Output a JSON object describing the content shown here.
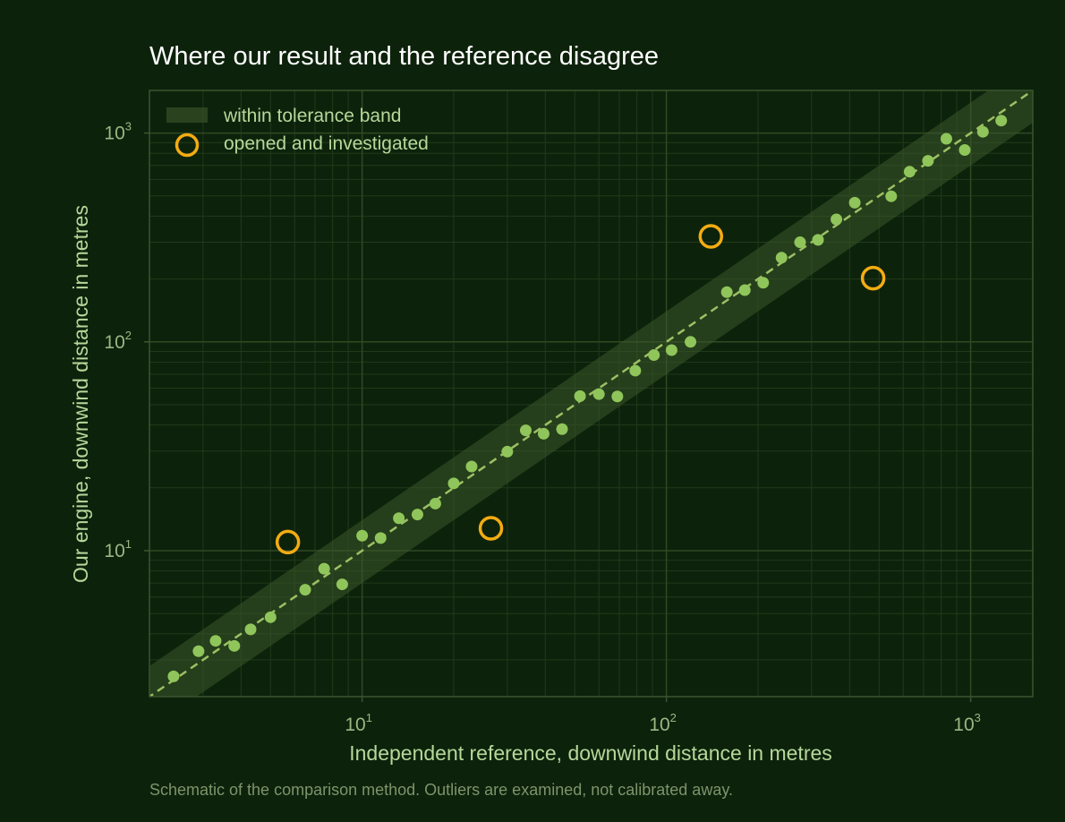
{
  "colors": {
    "background": "#0d220b",
    "grid_major": "#2f4a23",
    "grid_minor": "#213a1a",
    "frame": "#3b5530",
    "band_fill": "#3d5a2b",
    "points": "#8fc55a",
    "outliers": "#f3ac12",
    "identity_line": "#9cc064"
  },
  "chart_data": {
    "type": "scatter",
    "title": "Where our result and the reference disagree",
    "xlabel": "Independent reference, downwind distance in metres",
    "ylabel": "Our engine, downwind distance in metres",
    "footnote": "Schematic of the comparison method. Outliers are examined, not calibrated away.",
    "x_scale": "log",
    "y_scale": "log",
    "xlim": [
      2.0,
      1600
    ],
    "ylim": [
      2.0,
      1600
    ],
    "grid": true,
    "x_ticks": [
      {
        "base": "10",
        "exp": "1",
        "value": 10
      },
      {
        "base": "10",
        "exp": "2",
        "value": 100
      },
      {
        "base": "10",
        "exp": "3",
        "value": 1000
      }
    ],
    "y_ticks": [
      {
        "base": "10",
        "exp": "1",
        "value": 10
      },
      {
        "base": "10",
        "exp": "2",
        "value": 100
      },
      {
        "base": "10",
        "exp": "3",
        "value": 1000
      }
    ],
    "band": {
      "label": "within tolerance band",
      "factor_low": 0.7,
      "factor_high": 1.4
    },
    "identity_line": true,
    "legend": {
      "placement": "top-left"
    },
    "series": [
      {
        "points": [
          [
            2.4,
            2.5
          ],
          [
            2.9,
            3.3
          ],
          [
            3.3,
            3.7
          ],
          [
            3.8,
            3.5
          ],
          [
            4.3,
            4.2
          ],
          [
            5.0,
            4.8
          ],
          [
            6.5,
            6.5
          ],
          [
            7.5,
            8.2
          ],
          [
            8.6,
            6.9
          ],
          [
            10.0,
            11.8
          ],
          [
            11.5,
            11.5
          ],
          [
            13.2,
            14.3
          ],
          [
            15.2,
            14.9
          ],
          [
            17.4,
            16.8
          ],
          [
            20.0,
            21.0
          ],
          [
            22.9,
            25.3
          ],
          [
            30.0,
            29.8
          ],
          [
            34.5,
            37.7
          ],
          [
            39.5,
            36.3
          ],
          [
            45.4,
            38.2
          ],
          [
            52.0,
            55.0
          ],
          [
            60.0,
            56.2
          ],
          [
            69.0,
            54.8
          ],
          [
            79.0,
            72.8
          ],
          [
            91.0,
            86.5
          ],
          [
            104.0,
            91.3
          ],
          [
            120.0,
            100.0
          ],
          [
            158.0,
            173.0
          ],
          [
            181.0,
            177.0
          ],
          [
            208.0,
            192.0
          ],
          [
            239.0,
            253.0
          ],
          [
            275.0,
            300.0
          ],
          [
            315.0,
            308.0
          ],
          [
            362.0,
            386.0
          ],
          [
            416.0,
            464.0
          ],
          [
            548.0,
            498.0
          ],
          [
            630.0,
            653.0
          ],
          [
            724.0,
            736.0
          ],
          [
            832.0,
            939.0
          ],
          [
            956.0,
            830.0
          ],
          [
            1097.0,
            1014.0
          ],
          [
            1260.0,
            1147.0
          ]
        ]
      },
      {
        "label": "opened and investigated",
        "points": [
          [
            5.7,
            11.0
          ],
          [
            26.5,
            12.8
          ],
          [
            140.0,
            320.0
          ],
          [
            478.0,
            202.0
          ]
        ]
      }
    ]
  }
}
